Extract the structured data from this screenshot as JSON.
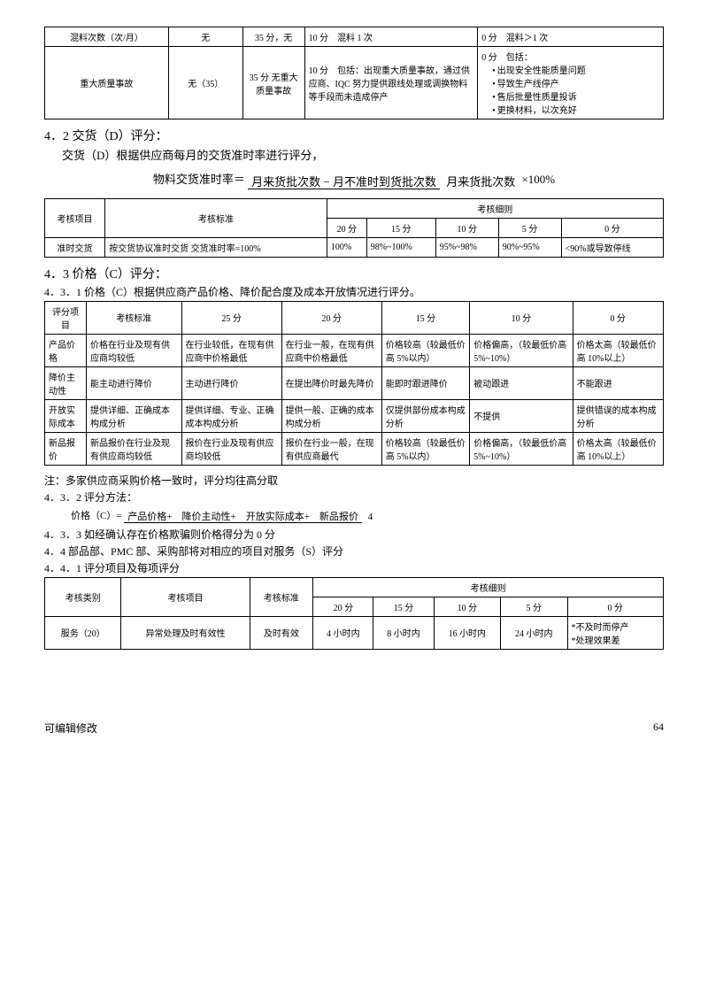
{
  "table1": {
    "rows": [
      {
        "c1": "混料次数（次/月）",
        "c2": "无",
        "c3": "35 分，无",
        "c4": "10 分　混料 1 次",
        "c5": "0 分　混料＞1 次"
      },
      {
        "c1": "重大质量事故",
        "c2": "无（35）",
        "c3": "35 分 无重大质量事故",
        "c4": "10 分　包括：出现重大质量事故，通过供应商、IQC 努力提供跟线处理或调换物料等手段而未造成停产",
        "c5_pre": "0 分　包括：",
        "c5_list": [
          "出现安全性能质量问题",
          "导致生产线停产",
          "售后批量性质量投诉",
          "更换材料，以次充好"
        ]
      }
    ]
  },
  "sec42": {
    "title": "4．2 交货（D）评分：",
    "sub": "交货（D）根据供应商每月的交货准时率进行评分，",
    "formula_label": "物料交货准时率＝",
    "frac_top": "月来货批次数 − 月不准时到货批次数",
    "frac_bot": "月来货批次数",
    "formula_suffix": "×100%"
  },
  "table2": {
    "h_item": "考核项目",
    "h_std": "考核标准",
    "h_detail": "考核细则",
    "cols": [
      "20 分",
      "15 分",
      "10 分",
      "5 分",
      "0 分"
    ],
    "row": {
      "item": "准时交货",
      "std": "按交货协议准时交货 交货准时率=100%",
      "cells": [
        "100%",
        "98%~100%",
        "95%~98%",
        "90%~95%",
        "<90%或导致停线"
      ]
    }
  },
  "sec43": {
    "title": "4．3 价格（C）评分：",
    "sub1": "4．3．1 价格（C）根据供应商产品价格、降价配合度及成本开放情况进行评分。"
  },
  "table3": {
    "headers": [
      "评分项目",
      "考核标准",
      "25 分",
      "20 分",
      "15 分",
      "10 分",
      "0 分"
    ],
    "rows": [
      [
        "产品价格",
        "价格在行业及现有供应商均较低",
        "在行业较低，在现有供应商中价格最低",
        "在行业一般，在现有供应商中价格最低",
        "价格较高（较最低价高 5%以内）",
        "价格偏高，（较最低价高 5%~10%）",
        "价格太高（较最低价高 10%以上）"
      ],
      [
        "降价主动性",
        "能主动进行降价",
        "主动进行降价",
        "在提出降价时最先降价",
        "能即时跟进降价",
        "被动跟进",
        "不能跟进"
      ],
      [
        "开放实际成本",
        "提供详细、正确成本构成分析",
        "提供详细、专业、正确成本构成分析",
        "提供一般、正确的成本构成分析",
        "仅提供部份成本构成分析",
        "不提供",
        "提供错误的成本构成分析"
      ],
      [
        "新品报价",
        "新品报价在行业及现有供应商均较低",
        "报价在行业及现有供应商均较低",
        "报价在行业一般，在现有供应商最代",
        "价格较高（较最低价高 5%以内）",
        "价格偏高，（较最低价高 5%~10%）",
        "价格太高（较最低价高 10%以上）"
      ]
    ]
  },
  "note1": "注：多家供应商采购价格一致时，评分均往高分取",
  "sec432": {
    "title": "4．3．2 评分方法：",
    "label": "价格（C）=",
    "top": "产品价格+　降价主动性+　开放实际成本+　新品报价",
    "bot": "4"
  },
  "sec433": "4．3．3 如经确认存在价格欺骗则价格得分为 0 分",
  "sec44": "4．4 部品部、PMC 部、采购部将对相应的项目对服务（S）评分",
  "sec441": "4．4．1 评分项目及每项评分",
  "table4": {
    "h_cat": "考核类别",
    "h_item": "考核项目",
    "h_std": "考核标准",
    "h_detail": "考核细则",
    "cols": [
      "20 分",
      "15 分",
      "10 分",
      "5 分",
      "0 分"
    ],
    "row": {
      "cat": "服务（20）",
      "item": "异常处理及时有效性",
      "std": "及时有效",
      "cells_pre": [
        "4 小时内",
        "8 小时内",
        "16 小时内",
        "24 小时内"
      ],
      "last": [
        "*不及时而停产",
        "*处理效果差"
      ]
    }
  },
  "footer": {
    "left": "可编辑修改",
    "page": "64"
  }
}
